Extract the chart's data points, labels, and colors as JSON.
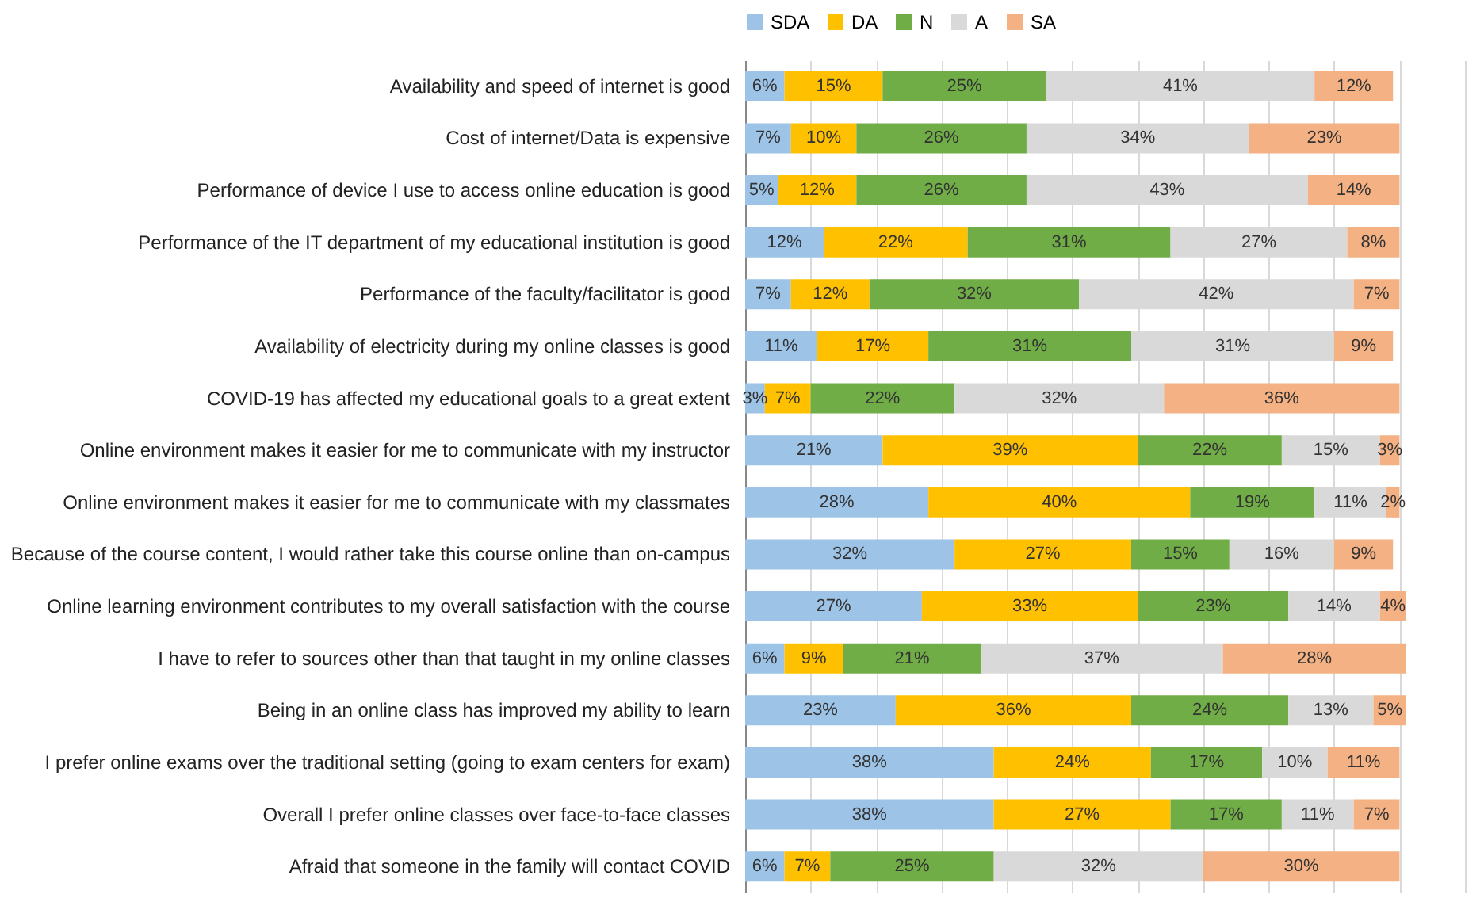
{
  "chart_data": {
    "type": "bar",
    "orientation": "horizontal",
    "stacked": true,
    "legend": "top",
    "grid": "x",
    "tick_labels": "y",
    "xlim": [
      0,
      110
    ],
    "xticks": [
      {
        "value": 0,
        "label": null
      },
      {
        "value": 10,
        "label": null
      },
      {
        "value": 20,
        "label": null
      },
      {
        "value": 30,
        "label": null
      },
      {
        "value": 40,
        "label": null
      },
      {
        "value": 50,
        "label": null
      },
      {
        "value": 60,
        "label": null
      },
      {
        "value": 70,
        "label": null
      },
      {
        "value": 80,
        "label": null
      },
      {
        "value": 90,
        "label": null
      },
      {
        "value": 100,
        "label": null
      },
      {
        "value": 110,
        "label": null
      }
    ],
    "categories": [
      "Availability and speed of internet is good",
      "Cost of internet/Data is expensive",
      "Performance of device I use to access online education is good",
      "Performance of the IT department of my educational institution is good",
      "Performance of the faculty/facilitator is good",
      "Availability of electricity during my online classes is good",
      "COVID-19 has affected my educational goals to a great extent",
      "Online environment makes it easier for me to communicate with my instructor",
      "Online environment makes it easier for me to communicate with my classmates",
      "Because of the course content, I would rather take this course online than on-campus",
      "Online learning environment contributes to my overall satisfaction with the course",
      "I have to refer to sources other than that taught in my online classes",
      "Being in an online class has improved my ability to learn",
      "I prefer online exams over the traditional setting (going to exam centers for exam)",
      "Overall I prefer online classes over face-to-face classes",
      "Afraid that someone in the family will contact COVID"
    ],
    "series": [
      {
        "name": "SDA",
        "color": "#9dc3e6",
        "values": [
          6,
          7,
          5,
          12,
          7,
          11,
          3,
          21,
          28,
          32,
          27,
          6,
          23,
          38,
          38,
          6
        ],
        "value_labels": [
          "6%",
          "7%",
          "5%",
          "12%",
          "7%",
          "11%",
          "3%",
          "21%",
          "28%",
          "32%",
          "27%",
          "6%",
          "23%",
          "38%",
          "38%",
          "6%"
        ]
      },
      {
        "name": "DA",
        "color": "#ffc000",
        "values": [
          15,
          10,
          12,
          22,
          12,
          17,
          7,
          39,
          40,
          27,
          33,
          9,
          36,
          24,
          27,
          7
        ],
        "value_labels": [
          "15%",
          "10%",
          "12%",
          "22%",
          "12%",
          "17%",
          "7%",
          "39%",
          "40%",
          "27%",
          "33%",
          "9%",
          "36%",
          "24%",
          "27%",
          "7%"
        ]
      },
      {
        "name": "N",
        "color": "#70ad47",
        "values": [
          25,
          26,
          26,
          31,
          32,
          31,
          22,
          22,
          19,
          15,
          23,
          21,
          24,
          17,
          17,
          25
        ],
        "value_labels": [
          "25%",
          "26%",
          "26%",
          "31%",
          "32%",
          "31%",
          "22%",
          "22%",
          "19%",
          "15%",
          "23%",
          "21%",
          "24%",
          "17%",
          "17%",
          "25%"
        ]
      },
      {
        "name": "A",
        "color": "#d9d9d9",
        "values": [
          41,
          34,
          43,
          27,
          42,
          31,
          32,
          15,
          11,
          16,
          14,
          37,
          13,
          10,
          11,
          32
        ],
        "value_labels": [
          "41%",
          "34%",
          "43%",
          "27%",
          "42%",
          "31%",
          "32%",
          "15%",
          "11%",
          "16%",
          "14%",
          "37%",
          "13%",
          "10%",
          "11%",
          "32%"
        ]
      },
      {
        "name": "SA",
        "color": "#f4b183",
        "values": [
          12,
          23,
          14,
          8,
          7,
          9,
          36,
          3,
          2,
          9,
          4,
          28,
          5,
          11,
          7,
          30
        ],
        "value_labels": [
          "12%",
          "23%",
          "14%",
          "8%",
          "7%",
          "9%",
          "36%",
          "3%",
          "2%",
          "9%",
          "4%",
          "28%",
          "5%",
          "11%",
          "7%",
          "30%"
        ]
      }
    ]
  }
}
